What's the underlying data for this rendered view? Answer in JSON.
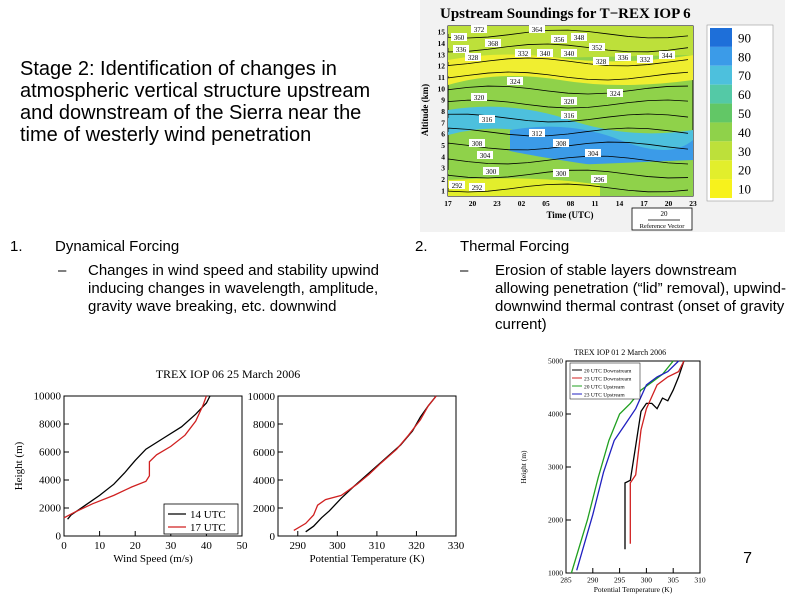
{
  "slide": {
    "title": "Stage 2: Identification of changes in atmospheric vertical structure upstream and downstream of the Sierra near the time of westerly wind penetration",
    "number": "7"
  },
  "sections": [
    {
      "num": "1.",
      "heading": "Dynamical Forcing",
      "dash": "–",
      "text": "Changes in wind speed and stability upwind inducing changes in wavelength, amplitude, gravity wave breaking, etc. downwind"
    },
    {
      "num": "2.",
      "heading": "Thermal Forcing",
      "dash": "–",
      "text": "Erosion of stable layers downstream allowing penetration (“lid” removal), upwind-downwind thermal contrast (onset of gravity current)"
    }
  ],
  "soundings": {
    "title": "Upstream Soundings for T−REX IOP 6",
    "ylabel": "Altitude (km)",
    "xlabel": "Time (UTC)",
    "yticks": [
      "1",
      "2",
      "3",
      "4",
      "5",
      "6",
      "7",
      "8",
      "9",
      "10",
      "11",
      "12",
      "13",
      "14",
      "15"
    ],
    "xticks": [
      "17",
      "20",
      "23",
      "02",
      "05",
      "08",
      "11",
      "14",
      "17",
      "20",
      "23"
    ],
    "colorbar": [
      {
        "label": "90",
        "color": "#1e6fd9"
      },
      {
        "label": "80",
        "color": "#3b9be8"
      },
      {
        "label": "70",
        "color": "#4dc0dd"
      },
      {
        "label": "60",
        "color": "#54c9a6"
      },
      {
        "label": "50",
        "color": "#62c766"
      },
      {
        "label": "40",
        "color": "#8fd24a"
      },
      {
        "label": "30",
        "color": "#bde03a"
      },
      {
        "label": "20",
        "color": "#e2ee2c"
      },
      {
        "label": "10",
        "color": "#f7f21c"
      }
    ],
    "ref_value": "20",
    "ref_label": "Reference Vector",
    "contour_labels": [
      "360",
      "372",
      "368",
      "364",
      "356",
      "348",
      "352",
      "336",
      "328",
      "332",
      "340",
      "340",
      "328",
      "336",
      "332",
      "344",
      "324",
      "324",
      "320",
      "320",
      "316",
      "316",
      "312",
      "308",
      "308",
      "304",
      "304",
      "300",
      "300",
      "296",
      "292",
      "292"
    ]
  },
  "chart_data": [
    {
      "type": "line",
      "title": "TREX IOP 06 25 March 2006",
      "xlabel": "Wind Speed (m/s)",
      "ylabel": "Height (m)",
      "xlim": [
        0,
        50
      ],
      "ylim": [
        0,
        10000
      ],
      "xticks": [
        "0",
        "10",
        "20",
        "30",
        "40",
        "50"
      ],
      "yticks": [
        "0",
        "2000",
        "4000",
        "6000",
        "8000",
        "10000"
      ],
      "legend_position": "bottom-right",
      "series": [
        {
          "name": "14 UTC",
          "color": "#000000",
          "points": [
            [
              1,
              1200
            ],
            [
              2,
              1500
            ],
            [
              6,
              2200
            ],
            [
              10,
              2900
            ],
            [
              14,
              3700
            ],
            [
              17,
              4500
            ],
            [
              20,
              5400
            ],
            [
              23,
              6200
            ],
            [
              28,
              7000
            ],
            [
              33,
              7800
            ],
            [
              37,
              8700
            ],
            [
              40,
              9500
            ],
            [
              41,
              10000
            ]
          ]
        },
        {
          "name": "17 UTC",
          "color": "#d02020",
          "points": [
            [
              0,
              1300
            ],
            [
              3,
              1700
            ],
            [
              8,
              2300
            ],
            [
              14,
              2900
            ],
            [
              19,
              3500
            ],
            [
              23,
              3900
            ],
            [
              24,
              4300
            ],
            [
              24,
              5300
            ],
            [
              26,
              5800
            ],
            [
              30,
              6400
            ],
            [
              34,
              7200
            ],
            [
              37,
              8200
            ],
            [
              39,
              9300
            ],
            [
              40,
              10000
            ]
          ]
        }
      ]
    },
    {
      "type": "line",
      "title": "",
      "xlabel": "Potential Temperature (K)",
      "ylabel": "",
      "xlim": [
        285,
        330
      ],
      "ylim": [
        0,
        10000
      ],
      "xticks": [
        "290",
        "300",
        "310",
        "320",
        "330"
      ],
      "yticks": [
        "0",
        "2000",
        "4000",
        "6000",
        "8000",
        "10000"
      ],
      "series": [
        {
          "name": "14 UTC",
          "color": "#000000",
          "points": [
            [
              292,
              300
            ],
            [
              294,
              700
            ],
            [
              296,
              1300
            ],
            [
              298,
              1800
            ],
            [
              301,
              2700
            ],
            [
              304,
              3500
            ],
            [
              308,
              4500
            ],
            [
              312,
              5500
            ],
            [
              316,
              6500
            ],
            [
              319,
              7500
            ],
            [
              321,
              8500
            ],
            [
              323,
              9300
            ],
            [
              325,
              10000
            ]
          ]
        },
        {
          "name": "17 UTC",
          "color": "#d02020",
          "points": [
            [
              289,
              400
            ],
            [
              292,
              900
            ],
            [
              294,
              1500
            ],
            [
              295,
              2200
            ],
            [
              297,
              2600
            ],
            [
              301,
              2900
            ],
            [
              305,
              3700
            ],
            [
              308,
              4400
            ],
            [
              311,
              5200
            ],
            [
              315,
              6200
            ],
            [
              318,
              7200
            ],
            [
              321,
              8300
            ],
            [
              323,
              9300
            ],
            [
              325,
              10000
            ]
          ]
        }
      ]
    },
    {
      "type": "line",
      "title": "TREX IOP 01 2 March 2006",
      "xlabel": "Potential Temperature (K)",
      "ylabel": "Height (m)",
      "xlim": [
        285,
        310
      ],
      "ylim": [
        1000,
        5000
      ],
      "xticks": [
        "285",
        "290",
        "295",
        "300",
        "305",
        "310"
      ],
      "yticks": [
        "1000",
        "2000",
        "3000",
        "4000",
        "5000"
      ],
      "legend_position": "top-left",
      "series": [
        {
          "name": "20 UTC Downstream",
          "color": "#000000",
          "points": [
            [
              296,
              1450
            ],
            [
              296,
              2700
            ],
            [
              297,
              2750
            ],
            [
              298,
              3400
            ],
            [
              299,
              4050
            ],
            [
              300,
              4200
            ],
            [
              301,
              4200
            ],
            [
              302,
              4100
            ],
            [
              303,
              4300
            ],
            [
              304,
              4250
            ],
            [
              305,
              4450
            ],
            [
              306,
              4700
            ],
            [
              307,
              5000
            ]
          ]
        },
        {
          "name": "23 UTC Downstream",
          "color": "#d02020",
          "points": [
            [
              297,
              1550
            ],
            [
              297,
              2700
            ],
            [
              298,
              2850
            ],
            [
              299,
              3700
            ],
            [
              300,
              4100
            ],
            [
              302,
              4550
            ],
            [
              304,
              4700
            ],
            [
              306,
              4800
            ],
            [
              307,
              5000
            ]
          ]
        },
        {
          "name": "20 UTC Upstream",
          "color": "#20a020",
          "points": [
            [
              286,
              1000
            ],
            [
              289,
              2000
            ],
            [
              291,
              2800
            ],
            [
              293,
              3500
            ],
            [
              295,
              4000
            ],
            [
              297,
              4200
            ],
            [
              299,
              4450
            ],
            [
              301,
              4600
            ],
            [
              303,
              4750
            ],
            [
              305,
              5000
            ]
          ]
        },
        {
          "name": "23 UTC Upstream",
          "color": "#2020c0",
          "points": [
            [
              287,
              1050
            ],
            [
              290,
              2100
            ],
            [
              292,
              2900
            ],
            [
              294,
              3500
            ],
            [
              296,
              3800
            ],
            [
              298,
              4100
            ],
            [
              300,
              4550
            ],
            [
              302,
              4700
            ],
            [
              304,
              4800
            ],
            [
              306,
              5000
            ]
          ]
        }
      ]
    }
  ]
}
